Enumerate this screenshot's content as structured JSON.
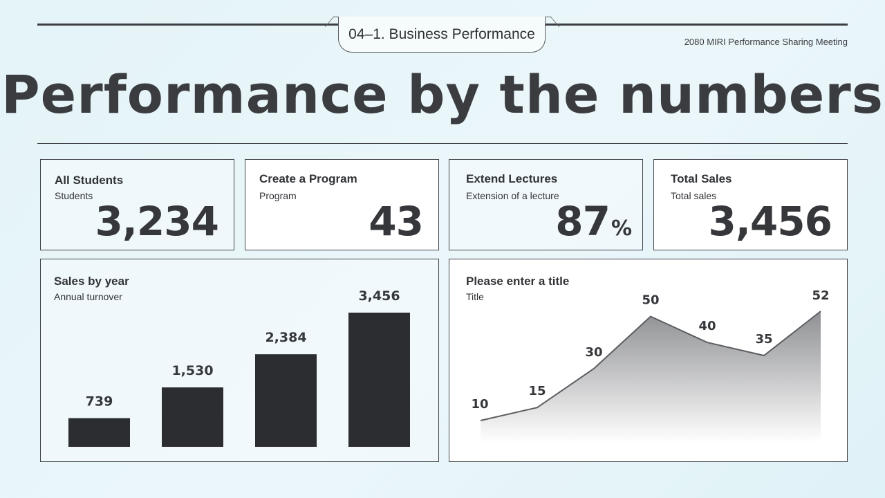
{
  "header": {
    "section_tab": "04–1. Business Performance",
    "meeting": "2080 MIRI Performance Sharing Meeting",
    "title": "Performance by the numbers"
  },
  "stats": [
    {
      "title": "All Students",
      "subtitle": "Students",
      "value": "3,234",
      "unit": ""
    },
    {
      "title": "Create a Program",
      "subtitle": "Program",
      "value": "43",
      "unit": ""
    },
    {
      "title": "Extend Lectures",
      "subtitle": "Extension of a lecture",
      "value": "87",
      "unit": "%"
    },
    {
      "title": "Total Sales",
      "subtitle": "Total sales",
      "value": "3,456",
      "unit": ""
    }
  ],
  "colors": {
    "bar": "#2c2d30",
    "line": "#5b5d61",
    "accent": "#3c3e42"
  },
  "chart_data": [
    {
      "type": "bar",
      "title": "Sales by year",
      "subtitle": "Annual turnover",
      "categories": [
        "",
        "",
        "",
        ""
      ],
      "values": [
        739,
        1530,
        2384,
        3456
      ],
      "labels": [
        "739",
        "1,530",
        "2,384",
        "3,456"
      ],
      "ylim": [
        0,
        3456
      ]
    },
    {
      "type": "area",
      "title": "Please enter a title",
      "subtitle": "Title",
      "values": [
        10,
        15,
        30,
        50,
        40,
        35,
        52
      ],
      "labels": [
        "10",
        "15",
        "30",
        "50",
        "40",
        "35",
        "52"
      ],
      "ylim": [
        0,
        52
      ]
    }
  ]
}
